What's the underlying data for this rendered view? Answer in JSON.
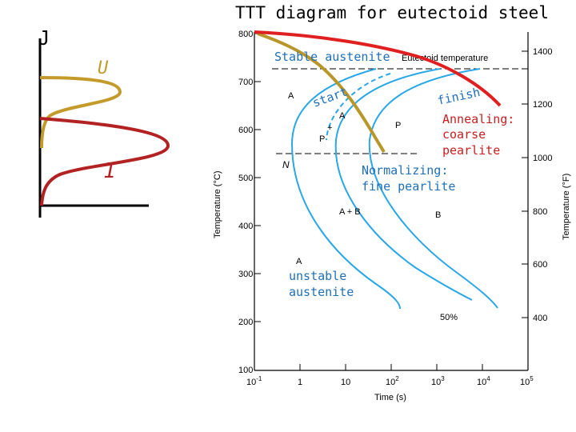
{
  "title": "TTT diagram for eutectoid steel",
  "left_sketch": {
    "top_label": "J",
    "u_label": "U",
    "i_label": "I"
  },
  "chart": {
    "y_axis_c_label": "Temperature (°C)",
    "y_axis_f_label": "Temperature (°F)",
    "x_axis_label": "Time (s)",
    "c_ticks": [
      "800",
      "700",
      "600",
      "500",
      "400",
      "300",
      "200",
      "100"
    ],
    "f_ticks": [
      "1400",
      "1200",
      "1000",
      "800",
      "600",
      "400"
    ],
    "x_ticks_base": [
      "10",
      "1",
      "10",
      "10",
      "10",
      "10",
      "10"
    ],
    "x_ticks_exp": [
      "-1",
      "",
      "",
      "2",
      "3",
      "4",
      "5"
    ],
    "eutectoid_label": "Eutectoid temperature",
    "region_labels": {
      "a_top": "A",
      "a_mid": "A",
      "plus": "+",
      "p_left": "P",
      "p_right": "P",
      "n": "N",
      "a_plus_b": "A + B",
      "b": "B",
      "a_low": "A",
      "pct": "50%"
    }
  },
  "annotations": {
    "stable_austenite": "Stable austenite",
    "start": "start",
    "finish": "finish",
    "annealing": [
      "Annealing:",
      "coarse",
      "pearlite"
    ],
    "normalizing": [
      "Normalizing:",
      "fine pearlite"
    ],
    "unstable": [
      "unstable",
      "austenite"
    ]
  },
  "colors": {
    "tt_curves": "#2aa7e6",
    "annealing_curve": "#e02020",
    "normalizing_curve": "#b8962a",
    "annotation_text": "#1f6fb8",
    "annealing_text": "#c81e1e",
    "sketch_u": "#c49a2a",
    "sketch_i": "#b32222"
  }
}
